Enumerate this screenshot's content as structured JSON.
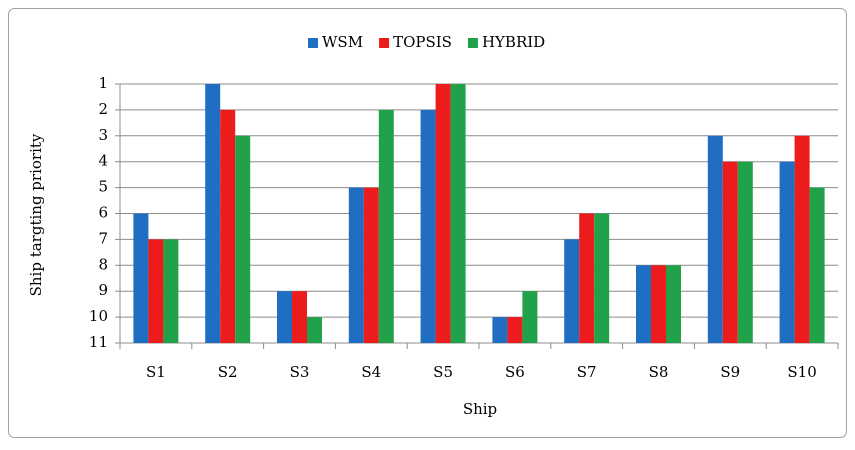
{
  "chart_data": {
    "type": "bar",
    "x_label": "Ship",
    "y_label": "Ship targting priority",
    "categories": [
      "S1",
      "S2",
      "S3",
      "S4",
      "S5",
      "S6",
      "S7",
      "S8",
      "S9",
      "S10"
    ],
    "series": [
      {
        "name": "WSM",
        "color": "#1f6ec2",
        "values": [
          6,
          1,
          9,
          5,
          2,
          10,
          7,
          8,
          3,
          4
        ]
      },
      {
        "name": "TOPSIS",
        "color": "#ec1c1c",
        "values": [
          7,
          2,
          9,
          5,
          1,
          10,
          6,
          8,
          4,
          3
        ]
      },
      {
        "name": "HYBRID",
        "color": "#21a24a",
        "values": [
          7,
          3,
          10,
          2,
          1,
          9,
          6,
          8,
          4,
          5
        ]
      }
    ],
    "ylim": [
      11,
      1
    ],
    "yticks": [
      1,
      2,
      3,
      4,
      5,
      6,
      7,
      8,
      9,
      10,
      11
    ],
    "grid": true,
    "legend": "top"
  }
}
